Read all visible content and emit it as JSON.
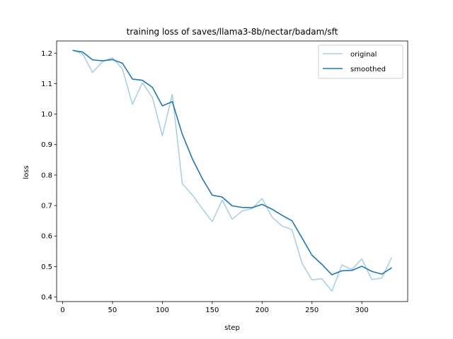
{
  "chart_data": {
    "type": "line",
    "title": "training loss of saves/llama3-8b/nectar/badam/sft",
    "xlabel": "step",
    "ylabel": "loss",
    "xlim": [
      -6,
      346
    ],
    "ylim": [
      0.385,
      1.24
    ],
    "xticks": [
      0,
      50,
      100,
      150,
      200,
      250,
      300
    ],
    "yticks": [
      0.4,
      0.5,
      0.6,
      0.7,
      0.8,
      0.9,
      1.0,
      1.1,
      1.2
    ],
    "ytick_labels": [
      "0.4",
      "0.5",
      "0.6",
      "0.7",
      "0.8",
      "0.9",
      "1.0",
      "1.1",
      "1.2"
    ],
    "grid": false,
    "legend_position": "top-right",
    "x": [
      10,
      20,
      30,
      40,
      50,
      60,
      70,
      80,
      90,
      100,
      110,
      120,
      130,
      140,
      150,
      160,
      170,
      180,
      190,
      200,
      210,
      220,
      230,
      240,
      250,
      260,
      270,
      280,
      290,
      300,
      310,
      320,
      330
    ],
    "series": [
      {
        "name": "original",
        "color": "#a6cee3",
        "values": [
          1.21,
          1.198,
          1.137,
          1.172,
          1.185,
          1.148,
          1.032,
          1.103,
          1.055,
          0.929,
          1.065,
          0.772,
          0.735,
          0.69,
          0.647,
          0.718,
          0.655,
          0.682,
          0.69,
          0.723,
          0.662,
          0.633,
          0.621,
          0.511,
          0.456,
          0.46,
          0.419,
          0.505,
          0.49,
          0.525,
          0.457,
          0.462,
          0.53
        ]
      },
      {
        "name": "smoothed",
        "color": "#1f78b4",
        "values": [
          1.209,
          1.204,
          1.178,
          1.175,
          1.179,
          1.167,
          1.115,
          1.111,
          1.088,
          1.027,
          1.041,
          0.934,
          0.854,
          0.789,
          0.734,
          0.728,
          0.699,
          0.694,
          0.693,
          0.704,
          0.688,
          0.668,
          0.65,
          0.594,
          0.537,
          0.507,
          0.473,
          0.486,
          0.487,
          0.501,
          0.484,
          0.475,
          0.496
        ]
      }
    ]
  }
}
